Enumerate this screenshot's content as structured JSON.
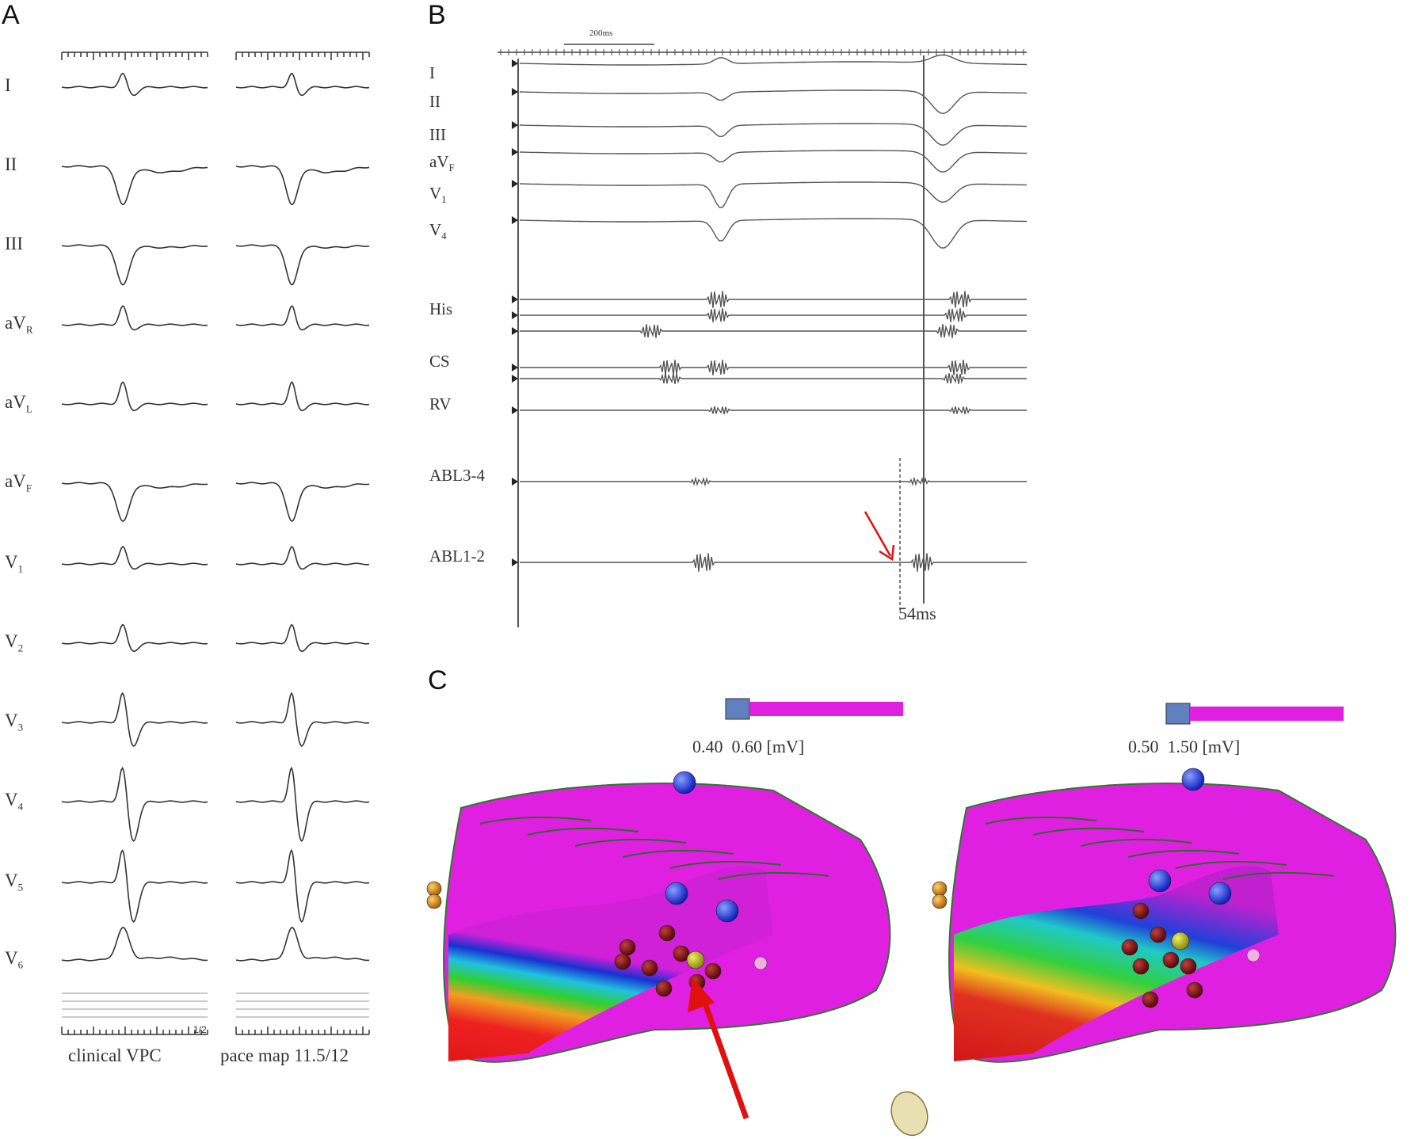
{
  "panels": {
    "A": {
      "letter": "A",
      "leads": [
        {
          "name": "I",
          "sub": ""
        },
        {
          "name": "II",
          "sub": ""
        },
        {
          "name": "III",
          "sub": ""
        },
        {
          "name": "aV",
          "sub": "R"
        },
        {
          "name": "aV",
          "sub": "L"
        },
        {
          "name": "aV",
          "sub": "F"
        },
        {
          "name": "V",
          "sub": "1"
        },
        {
          "name": "V",
          "sub": "2"
        },
        {
          "name": "V",
          "sub": "3"
        },
        {
          "name": "V",
          "sub": "4"
        },
        {
          "name": "V",
          "sub": "5"
        },
        {
          "name": "V",
          "sub": "6"
        }
      ],
      "caption_left": "clinical VPC",
      "caption_right": "pace map 11.5/12",
      "corner_mark": "1/2"
    },
    "B": {
      "letter": "B",
      "scale_label": "200ms",
      "surface_leads": [
        {
          "name": "I",
          "sub": ""
        },
        {
          "name": "II",
          "sub": ""
        },
        {
          "name": "III",
          "sub": ""
        },
        {
          "name": "aV",
          "sub": "F"
        },
        {
          "name": "V",
          "sub": "1"
        },
        {
          "name": "V",
          "sub": "4"
        }
      ],
      "intracardiac": [
        "His",
        "CS",
        "RV",
        "ABL3-4",
        "ABL1-2"
      ],
      "interval_label": "54ms"
    },
    "C": {
      "letter": "C",
      "left_scale": "0.40  0.60 [mV]",
      "right_scale": "0.50  1.50 [mV]"
    }
  },
  "colors": {
    "magenta": "#e020e0",
    "arrow": "#e01010",
    "trace": "#444444"
  }
}
